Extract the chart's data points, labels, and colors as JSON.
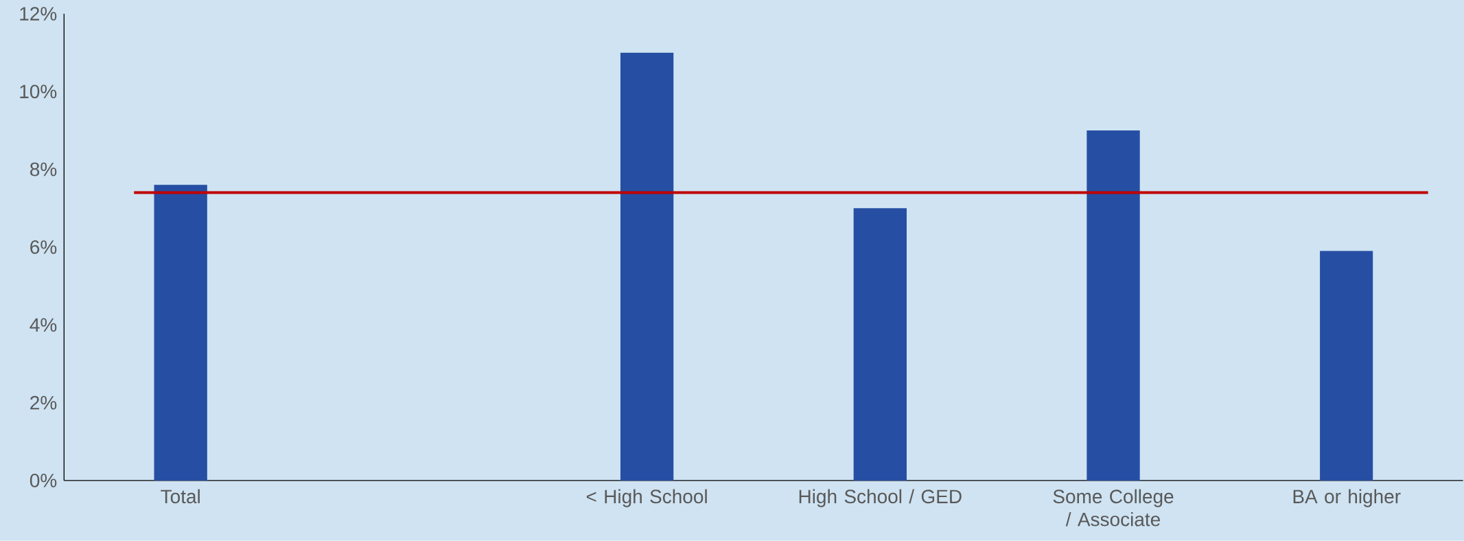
{
  "chart_data": {
    "type": "bar",
    "categories": [
      "Total",
      null,
      "< High School",
      "High School / GED",
      "Some College / Associate",
      "BA or higher"
    ],
    "values": [
      7.6,
      null,
      11.0,
      7.0,
      9.0,
      5.9
    ],
    "color": "#264fa3",
    "ylim": [
      0,
      12
    ],
    "yticks": [
      {
        "value": 0,
        "label": "0%"
      },
      {
        "value": 2,
        "label": "2%"
      },
      {
        "value": 4,
        "label": "4%"
      },
      {
        "value": 6,
        "label": "6%"
      },
      {
        "value": 8,
        "label": "8%"
      },
      {
        "value": 10,
        "label": "10%"
      },
      {
        "value": 12,
        "label": "12%"
      }
    ],
    "ref_lines": [
      {
        "axis": "y",
        "value": 7.4,
        "color": "#c00000"
      }
    ],
    "grid": false
  }
}
